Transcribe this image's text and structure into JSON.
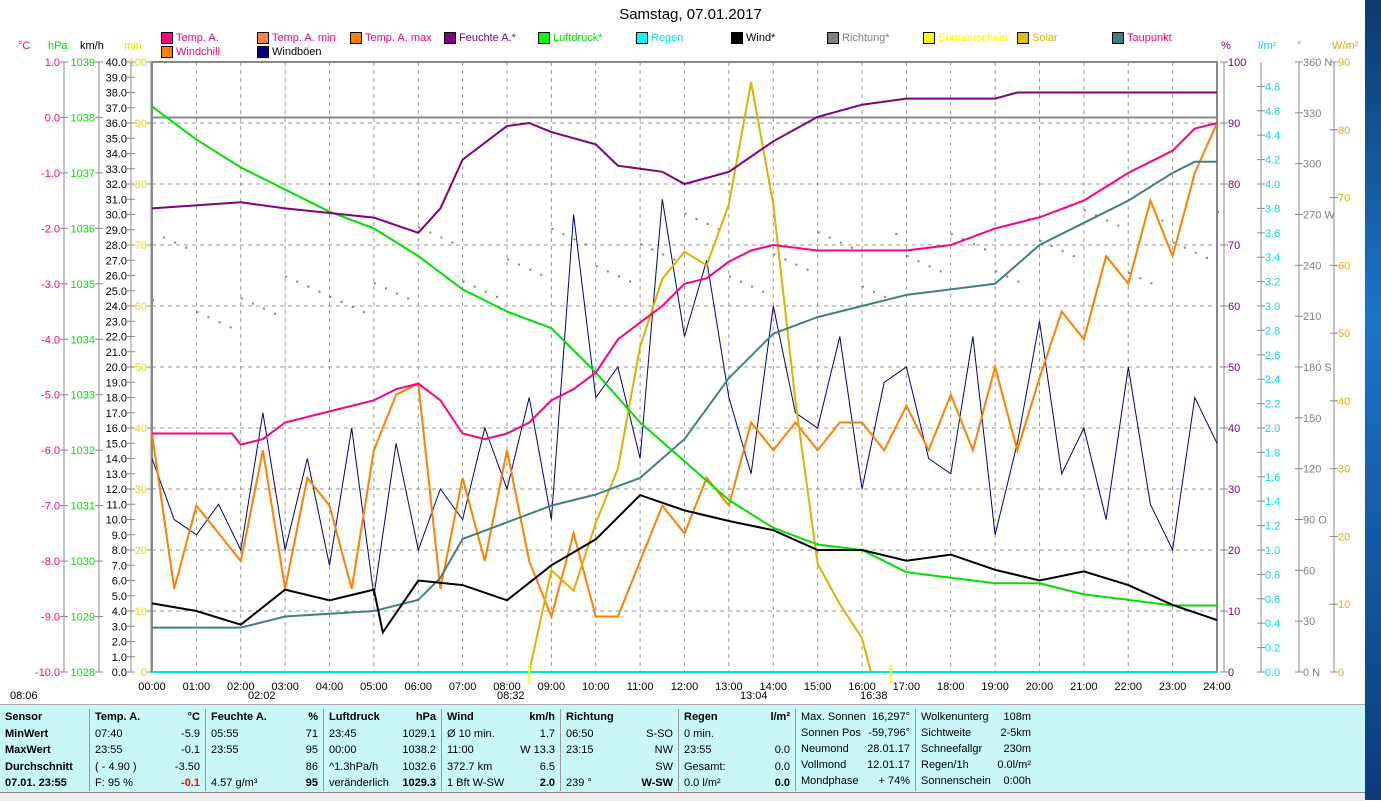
{
  "title": "Samstag, 07.01.2017",
  "legend": [
    {
      "label": "Temp. A.",
      "color": "#ff0080",
      "text": "#ff0080"
    },
    {
      "label": "Temp. A. min",
      "color": "#ff8040",
      "text": "#ff0080"
    },
    {
      "label": "Temp. A. max",
      "color": "#ff8000",
      "text": "#ff0080"
    },
    {
      "label": "Feuchte A.*",
      "color": "#800080",
      "text": "#800080"
    },
    {
      "label": "Luftdruck*",
      "color": "#00ff00",
      "text": "#00e000"
    },
    {
      "label": "Regen",
      "color": "#00ffff",
      "text": "#00e0e0"
    },
    {
      "label": "Wind*",
      "color": "#000000",
      "text": "#000000"
    },
    {
      "label": "Richtung*",
      "color": "#808080",
      "text": "#808080"
    },
    {
      "label": "Sonnenschein",
      "color": "#ffff00",
      "text": "#ffff00"
    },
    {
      "label": "Solar",
      "color": "#e0c000",
      "text": "#e0b000"
    },
    {
      "label": "Taupunkt",
      "color": "#408080",
      "text": "#ff0080"
    },
    {
      "label": "Windchill",
      "color": "#ff8000",
      "text": "#ff0080"
    },
    {
      "label": "Windböen",
      "color": "#000080",
      "text": "#000000"
    }
  ],
  "units": {
    "temp": "°C",
    "hpa": "hPa",
    "kmh": "km/h",
    "min": "min",
    "pct": "%",
    "rain": "l/m²",
    "deg": "°",
    "wm2": "W/m²"
  },
  "sun_events": {
    "sunrise": "08:06",
    "moonset": "02:02",
    "sun_start": "08:32",
    "moonrise": "13:04",
    "sunset": "16:38"
  },
  "chart_data": {
    "type": "line",
    "title": "Samstag, 07.01.2017",
    "x_ticks": [
      "00:00",
      "01:00",
      "02:00",
      "03:00",
      "04:00",
      "05:00",
      "06:00",
      "07:00",
      "08:00",
      "09:00",
      "10:00",
      "11:00",
      "12:00",
      "13:00",
      "14:00",
      "15:00",
      "16:00",
      "17:00",
      "18:00",
      "19:00",
      "20:00",
      "21:00",
      "22:00",
      "23:00",
      "24:00"
    ],
    "xlim": [
      0,
      24
    ],
    "axes": {
      "temp": {
        "min": -10,
        "max": 1,
        "step": 1,
        "dec": 1,
        "color": "#ff0080"
      },
      "hpa": {
        "min": 1028,
        "max": 1039,
        "step": 1,
        "dec": 0,
        "color": "#00e000"
      },
      "kmh": {
        "min": 0,
        "max": 40,
        "step": 1,
        "dec": 1,
        "color": "#000000"
      },
      "min": {
        "min": 0,
        "max": 100,
        "step": 10,
        "dec": 0,
        "color": "#e0e000"
      },
      "pct": {
        "min": 0,
        "max": 100,
        "step": 10,
        "dec": 0,
        "color": "#800080"
      },
      "rain": {
        "min": 0,
        "max": 5,
        "step": 0.2,
        "dec": 1,
        "color": "#00e0e0",
        "labelmax": 4.8
      },
      "deg": {
        "min": 0,
        "max": 360,
        "step": 30,
        "dec": 0,
        "color": "#808080",
        "dirs": {
          "0": "N",
          "90": "O",
          "180": "S",
          "270": "W",
          "360": "N"
        }
      },
      "wm2": {
        "min": 0,
        "max": 90,
        "step": 10,
        "dec": 0,
        "color": "#e0b000"
      }
    },
    "series": [
      {
        "name": "Windböen",
        "axis": "kmh",
        "color": "#000080",
        "width": 1,
        "x": [
          0,
          0.5,
          1,
          1.5,
          2,
          2.5,
          3,
          3.5,
          4,
          4.5,
          5,
          5.5,
          6,
          6.5,
          7,
          7.5,
          8,
          8.5,
          9,
          9.5,
          10,
          10.5,
          11,
          11.5,
          12,
          12.5,
          13,
          13.5,
          14,
          14.5,
          15,
          15.5,
          16,
          16.5,
          17,
          17.5,
          18,
          18.5,
          19,
          19.5,
          20,
          20.5,
          21,
          21.5,
          22,
          22.5,
          23,
          23.5,
          24
        ],
        "y": [
          14,
          10,
          9,
          11,
          8,
          17,
          8,
          14,
          7,
          16,
          5,
          15,
          8,
          12,
          10,
          16,
          12,
          18,
          10,
          30,
          18,
          20,
          14,
          31,
          22,
          27,
          18,
          13,
          24,
          17,
          16,
          22,
          12,
          19,
          20,
          14,
          13,
          22,
          9,
          15,
          23,
          13,
          16,
          10,
          20,
          11,
          8,
          18,
          15
        ]
      },
      {
        "name": "Richtung*",
        "axis": "deg",
        "color": "#808080",
        "dots": true,
        "x": [
          0,
          1,
          2,
          3,
          4,
          5,
          6,
          7,
          8,
          9,
          10,
          11,
          12,
          13,
          14,
          15,
          16,
          17,
          18,
          19,
          20,
          21,
          22,
          23,
          24
        ],
        "y": [
          240,
          220,
          215,
          215,
          230,
          225,
          245,
          240,
          240,
          245,
          250,
          250,
          255,
          245,
          245,
          245,
          240,
          245,
          245,
          250,
          255,
          260,
          250,
          255,
          260
        ]
      },
      {
        "name": "Windchill",
        "axis": "temp",
        "color": "#ff8000",
        "width": 2,
        "x": [
          0,
          0.5,
          1,
          1.5,
          2,
          2.5,
          3,
          3.5,
          4,
          4.5,
          5,
          5.5,
          6,
          6.5,
          7,
          7.5,
          8,
          8.5,
          9,
          9.5,
          10,
          10.5,
          11,
          11.5,
          12,
          12.5,
          13,
          13.5,
          14,
          14.5,
          15,
          15.5,
          16,
          16.5,
          17,
          17.5,
          18,
          18.5,
          19,
          19.5,
          20,
          20.5,
          21,
          21.5,
          22,
          22.5,
          23,
          23.5,
          24
        ],
        "y": [
          -5.7,
          -8.5,
          -7.0,
          -7.5,
          -8.0,
          -6.0,
          -8.5,
          -6.5,
          -7.0,
          -8.5,
          -6.0,
          -5.0,
          -4.8,
          -8.5,
          -6.5,
          -8.0,
          -6.0,
          -8.0,
          -9.0,
          -7.5,
          -9.0,
          -9.0,
          -8.0,
          -7.0,
          -7.5,
          -6.5,
          -7.0,
          -5.5,
          -6.0,
          -5.5,
          -6.0,
          -5.5,
          -5.5,
          -6.0,
          -5.2,
          -6.0,
          -5.0,
          -6.0,
          -4.5,
          -6.0,
          -4.7,
          -3.5,
          -4.0,
          -2.5,
          -3.0,
          -1.5,
          -2.5,
          -1.0,
          -0.1
        ]
      },
      {
        "name": "Solar",
        "axis": "wm2",
        "color": "#e0b000",
        "width": 2,
        "x": [
          8.5,
          9,
          9.5,
          10,
          10.5,
          11,
          11.5,
          12,
          12.5,
          13,
          13.5,
          14,
          14.5,
          15,
          15.5,
          16,
          16.2
        ],
        "y": [
          0,
          15,
          12,
          22,
          30,
          48,
          58,
          62,
          60,
          69,
          87,
          69,
          40,
          16,
          10,
          5,
          0
        ]
      },
      {
        "name": "Taupunkt",
        "axis": "temp",
        "color": "#408080",
        "width": 2,
        "x": [
          0,
          2,
          3,
          5,
          6,
          6.5,
          7,
          8,
          9,
          10,
          11,
          12,
          13,
          14,
          15,
          16,
          17,
          18,
          19,
          20,
          21,
          22,
          23,
          23.5,
          24
        ],
        "y": [
          -9.2,
          -9.2,
          -9.0,
          -8.9,
          -8.7,
          -8.3,
          -7.6,
          -7.3,
          -7.0,
          -6.8,
          -6.5,
          -5.8,
          -4.7,
          -3.9,
          -3.6,
          -3.4,
          -3.2,
          -3.1,
          -3.0,
          -2.3,
          -1.9,
          -1.5,
          -1.0,
          -0.8,
          -0.8
        ]
      },
      {
        "name": "Luftdruck*",
        "axis": "hpa",
        "color": "#00e000",
        "width": 2,
        "x": [
          0,
          1,
          2,
          3,
          4,
          5,
          6,
          7,
          8,
          9,
          10,
          11,
          12,
          13,
          14,
          15,
          16,
          17,
          18,
          19,
          20,
          21,
          22,
          23,
          24
        ],
        "y": [
          1038.2,
          1037.6,
          1037.1,
          1036.7,
          1036.3,
          1036.0,
          1035.5,
          1034.9,
          1034.5,
          1034.2,
          1033.4,
          1032.5,
          1031.8,
          1031.1,
          1030.6,
          1030.3,
          1030.2,
          1029.8,
          1029.7,
          1029.6,
          1029.6,
          1029.4,
          1029.3,
          1029.2,
          1029.2
        ]
      },
      {
        "name": "Wind*",
        "axis": "kmh",
        "color": "#000000",
        "width": 2,
        "x": [
          0,
          1,
          2,
          3,
          4,
          5,
          5.2,
          6,
          7,
          8,
          9,
          10,
          11,
          12,
          13,
          14,
          15,
          16,
          17,
          18,
          19,
          20,
          21,
          22,
          23,
          24
        ],
        "y": [
          4.5,
          4.0,
          3.1,
          5.4,
          4.7,
          5.4,
          2.6,
          6.0,
          5.7,
          4.7,
          7.0,
          8.7,
          11.6,
          10.6,
          9.9,
          9.3,
          8.0,
          8.0,
          7.3,
          7.7,
          6.7,
          6.0,
          6.6,
          5.7,
          4.4,
          3.4
        ]
      },
      {
        "name": "Feuchte A.*",
        "axis": "pct",
        "color": "#800080",
        "width": 2,
        "x": [
          0,
          2,
          3,
          5,
          6,
          6.5,
          7,
          8,
          8.5,
          9,
          10,
          10.5,
          11.5,
          12,
          13,
          14,
          15,
          16,
          17,
          19,
          19.5,
          24
        ],
        "y": [
          76,
          77,
          76,
          74.5,
          72,
          76,
          84,
          89.5,
          90,
          88.5,
          86.5,
          83,
          82,
          80,
          82,
          87,
          91,
          93,
          94,
          94,
          95,
          95
        ]
      },
      {
        "name": "Temp. A.",
        "axis": "temp",
        "color": "#ff0080",
        "width": 2,
        "x": [
          0,
          1.8,
          2,
          2.5,
          3,
          4,
          5,
          5.5,
          6,
          6.5,
          7,
          7.5,
          8,
          8.5,
          9,
          9.5,
          10,
          10.5,
          11,
          11.5,
          12,
          12.5,
          13,
          13.5,
          14,
          15,
          16,
          17,
          18,
          19,
          20,
          21,
          22,
          23,
          23.5,
          24
        ],
        "y": [
          -5.7,
          -5.7,
          -5.9,
          -5.8,
          -5.5,
          -5.3,
          -5.1,
          -4.9,
          -4.8,
          -5.1,
          -5.7,
          -5.8,
          -5.7,
          -5.5,
          -5.1,
          -4.9,
          -4.6,
          -4.0,
          -3.7,
          -3.4,
          -3.0,
          -2.9,
          -2.6,
          -2.4,
          -2.3,
          -2.4,
          -2.4,
          -2.4,
          -2.3,
          -2.0,
          -1.8,
          -1.5,
          -1.0,
          -0.6,
          -0.2,
          -0.1
        ]
      },
      {
        "name": "Regen",
        "axis": "rain",
        "color": "#00e0e0",
        "width": 2,
        "x": [
          0,
          24
        ],
        "y": [
          0,
          0
        ]
      }
    ]
  },
  "table": {
    "sensor": {
      "h": "Sensor",
      "r": [
        "MinWert",
        "MaxWert",
        "Durchschnitt",
        "07.01. 23:55"
      ]
    },
    "temp": {
      "h": "Temp. A.",
      "u": "°C",
      "r": [
        [
          "07:40",
          "-5.9"
        ],
        [
          "23:55",
          "-0.1"
        ],
        [
          "( - 4.90 )",
          "-3.50"
        ],
        [
          "F: 95 %",
          "-0.1"
        ]
      ]
    },
    "hum": {
      "h": "Feuchte A.",
      "u": "%",
      "r": [
        [
          "05:55",
          "71"
        ],
        [
          "23:55",
          "95"
        ],
        [
          "",
          "86"
        ],
        [
          "4.57 g/m³",
          "95"
        ]
      ]
    },
    "press": {
      "h": "Luftdruck",
      "u": "hPa",
      "r": [
        [
          "23:45",
          "1029.1"
        ],
        [
          "00:00",
          "1038.2"
        ],
        [
          "^1.3hPa/h",
          "1032.6"
        ],
        [
          "veränderlich",
          "1029.3"
        ]
      ]
    },
    "wind": {
      "h": "Wind",
      "u": "km/h",
      "r": [
        [
          "Ø 10 min.",
          "1.7"
        ],
        [
          "11:00",
          "W 13.3"
        ],
        [
          "372.7 km",
          "6.5"
        ],
        [
          "1 Bft W-SW",
          "2.0"
        ]
      ]
    },
    "dir": {
      "h": "Richtung",
      "u": "",
      "r": [
        [
          "06:50",
          "S-SO"
        ],
        [
          "23:15",
          "NW"
        ],
        [
          "",
          "SW"
        ],
        [
          "239 °",
          "W-SW"
        ]
      ]
    },
    "rain": {
      "h": "Regen",
      "u": "l/m²",
      "r": [
        [
          "0 min.",
          ""
        ],
        [
          "23:55",
          "0.0"
        ],
        [
          "Gesamt:",
          "0.0"
        ],
        [
          "0.0 l/m²",
          "0.0"
        ]
      ]
    },
    "sun": {
      "r": [
        [
          "Max. Sonnen",
          "16,297°"
        ],
        [
          "Sonnen Pos",
          "-59,796°"
        ],
        [
          "Neumond",
          "28.01.17"
        ],
        [
          "Vollmond",
          "12.01.17"
        ],
        [
          "Mondphase",
          "+ 74%"
        ]
      ]
    },
    "misc": {
      "r": [
        [
          "Wolkenunterg",
          "108m"
        ],
        [
          "Sichtweite",
          "2-5km"
        ],
        [
          "Schneefallgr",
          "230m"
        ],
        [
          "Regen/1h",
          "0.0l/m²"
        ],
        [
          "Sonnenschein",
          "0:00h"
        ]
      ]
    }
  }
}
